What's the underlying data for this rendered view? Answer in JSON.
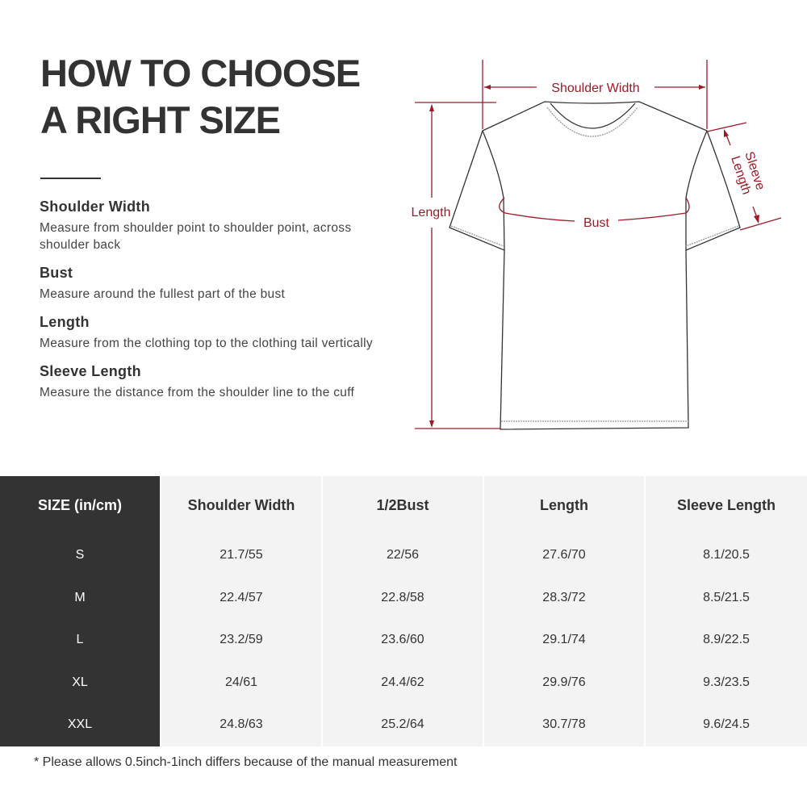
{
  "title": {
    "line1": "HOW TO CHOOSE",
    "line2": "A RIGHT SIZE"
  },
  "definitions": [
    {
      "heading": "Shoulder Width",
      "text": "Measure from shoulder point to shoulder point, across shoulder back"
    },
    {
      "heading": "Bust",
      "text": "Measure around the fullest part of the bust"
    },
    {
      "heading": "Length",
      "text": "Measure from the clothing top to the clothing tail vertically"
    },
    {
      "heading": "Sleeve Length",
      "text": "Measure the distance from the shoulder line to the cuff"
    }
  ],
  "diagram": {
    "labels": {
      "shoulder_width": "Shoulder Width",
      "length": "Length",
      "bust": "Bust",
      "sleeve_line1": "Sleeve",
      "sleeve_line2": "Length"
    },
    "accent_color": "#9b1b28"
  },
  "table": {
    "headers": [
      "SIZE  (in/cm)",
      "Shoulder Width",
      "1/2Bust",
      "Length",
      "Sleeve Length"
    ],
    "rows": [
      [
        "S",
        "21.7/55",
        "22/56",
        "27.6/70",
        "8.1/20.5"
      ],
      [
        "M",
        "22.4/57",
        "22.8/58",
        "28.3/72",
        "8.5/21.5"
      ],
      [
        "L",
        "23.2/59",
        "23.6/60",
        "29.1/74",
        "8.9/22.5"
      ],
      [
        "XL",
        "24/61",
        "24.4/62",
        "29.9/76",
        "9.3/23.5"
      ],
      [
        "XXL",
        "24.8/63",
        "25.2/64",
        "30.7/78",
        "9.6/24.5"
      ]
    ]
  },
  "note": "* Please allows 0.5inch-1inch differs because of the  manual measurement"
}
